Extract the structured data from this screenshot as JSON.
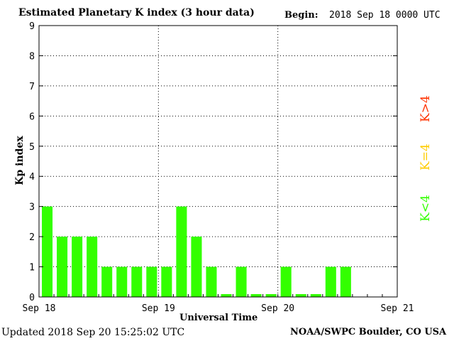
{
  "header": {
    "title": "Estimated Planetary K index (3 hour data)",
    "begin_label": "Begin:",
    "begin_value": "2018 Sep 18 0000 UTC"
  },
  "footer": {
    "updated": "Updated 2018 Sep 20 15:25:02 UTC",
    "source": "NOAA/SWPC Boulder, CO USA"
  },
  "legend": {
    "low": "K<4",
    "equal": "K=4",
    "high": "K>4",
    "low_color": "#33ff00",
    "equal_color": "#ffcc00",
    "high_color": "#ff3300"
  },
  "chart_data": {
    "type": "bar",
    "ylabel": "Kp index",
    "xlabel": "Universal Time",
    "ylim": [
      0,
      9
    ],
    "y_ticks": [
      "0",
      "1",
      "2",
      "3",
      "4",
      "5",
      "6",
      "7",
      "8",
      "9"
    ],
    "x_tick_labels": [
      "Sep 18",
      "Sep 19",
      "Sep 20",
      "Sep 21"
    ],
    "slots_per_day": 8,
    "days": 3,
    "bar_color": "#33ff00",
    "grid": "dotted",
    "values": [
      3,
      2,
      2,
      2,
      1,
      1,
      1,
      1,
      1,
      3,
      2,
      1,
      0,
      1,
      0,
      0,
      1,
      0,
      0,
      1,
      1
    ]
  }
}
